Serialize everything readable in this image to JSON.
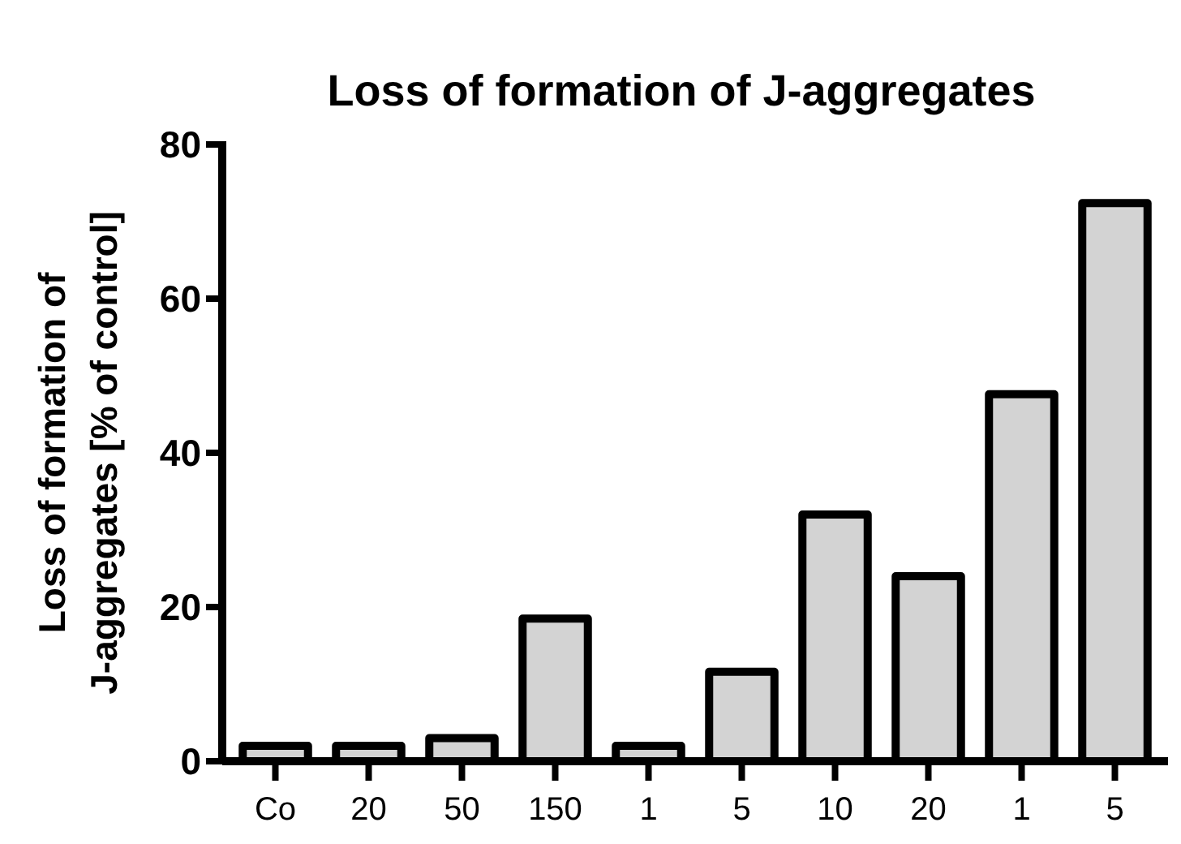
{
  "chart_data": {
    "type": "bar",
    "title": "Loss of formation of J-aggregates",
    "ylabel": "Loss of formation of\nJ-aggregates [% of control]",
    "categories": [
      "Co",
      "20",
      "50",
      "150",
      "1",
      "5",
      "10",
      "20",
      "1",
      "5"
    ],
    "values": [
      2,
      2,
      3,
      18.5,
      2,
      11.6,
      32,
      24,
      47.6,
      72.4
    ],
    "color": "#d3d3d3",
    "ylim": [
      0,
      80
    ],
    "yticks": [
      0,
      20,
      40,
      60,
      80
    ],
    "grid": false
  }
}
